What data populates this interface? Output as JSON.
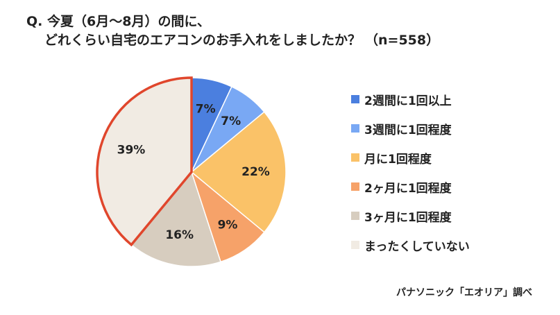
{
  "question": {
    "prefix": "Q.",
    "line1": "今夏（6月～8月）の間に、",
    "line2": "どれくらい自宅のエアコンのお手入れをしましたか？",
    "sample": "（n=558）"
  },
  "source": "パナソニック「エオリア」調べ",
  "colors": {
    "highlight_stroke": "#e0462c",
    "slice_stroke": "#ffffff"
  },
  "chart_data": {
    "type": "pie",
    "title": "今夏（6月～8月）の間に、どれくらい自宅のエアコンのお手入れをしましたか？（n=558）",
    "start": "12 o'clock, clockwise",
    "highlighted": "まったくしていない",
    "slices": [
      {
        "label": "2週間に1回以上",
        "value": 7,
        "display": "7%",
        "color": "#4b7fdf"
      },
      {
        "label": "3週間に1回程度",
        "value": 7,
        "display": "7%",
        "color": "#79a8f4"
      },
      {
        "label": "月に1回程度",
        "value": 22,
        "display": "22%",
        "color": "#fac268"
      },
      {
        "label": "2ヶ月に1回程度",
        "value": 9,
        "display": "9%",
        "color": "#f6a269"
      },
      {
        "label": "3ヶ月に1回程度",
        "value": 16,
        "display": "16%",
        "color": "#d7cdbf"
      },
      {
        "label": "まったくしていない",
        "value": 39,
        "display": "39%",
        "color": "#f1ebe3"
      }
    ]
  }
}
